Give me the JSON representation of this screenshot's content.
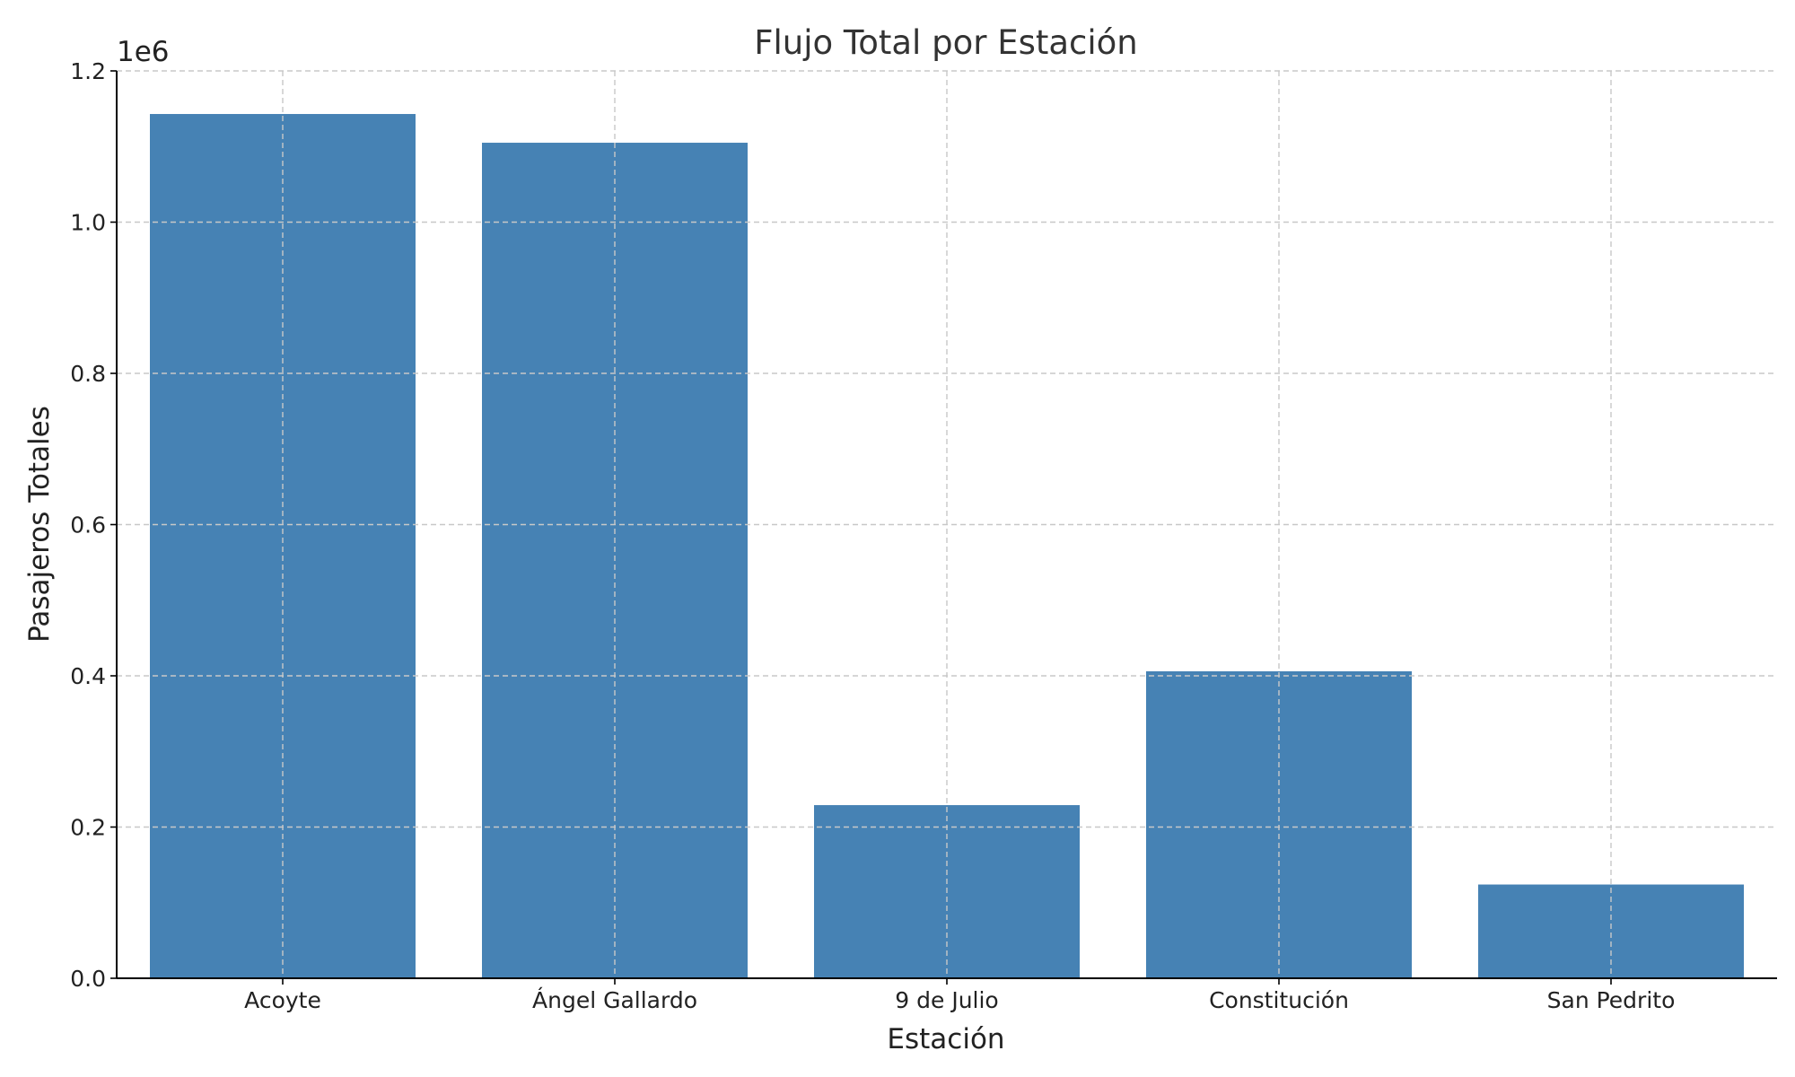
{
  "chart_data": {
    "type": "bar",
    "title": "Flujo Total por Estación",
    "xlabel": "Estación",
    "ylabel": "Pasajeros Totales",
    "y_offset_label": "1e6",
    "categories": [
      "Acoyte",
      "Ángel Gallardo",
      "9 de Julio",
      "Constitución",
      "San Pedrito"
    ],
    "values": [
      1143000,
      1105000,
      229000,
      406000,
      124000
    ],
    "ylim": [
      0,
      1200000
    ],
    "y_ticks": [
      0,
      200000,
      400000,
      600000,
      800000,
      1000000,
      1200000
    ],
    "y_tick_labels": [
      "0.0",
      "0.2",
      "0.4",
      "0.6",
      "0.8",
      "1.0",
      "1.2"
    ],
    "bar_color": "#4682b4",
    "grid": true,
    "legend": "none"
  }
}
